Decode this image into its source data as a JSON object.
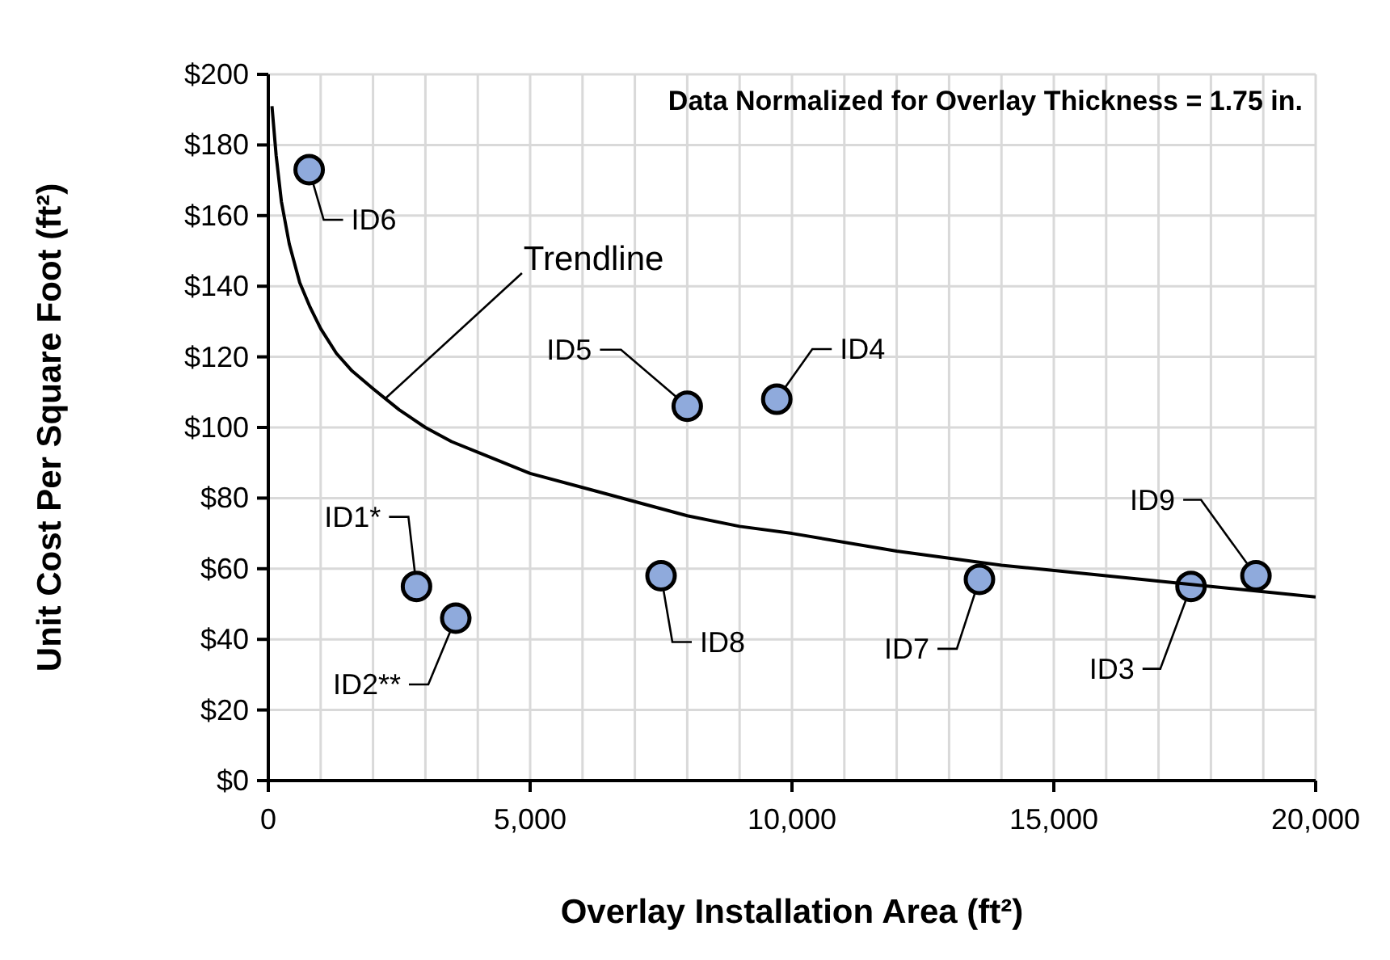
{
  "chart_data": {
    "type": "scatter",
    "title": "Data Normalized for Overlay Thickness = 1.75 in.",
    "xlabel": "Overlay Installation Area (ft²)",
    "ylabel": "Unit Cost Per Square Foot (ft²)",
    "series": [
      {
        "color": "#8faadc",
        "x": [
          780,
          2830,
          3580,
          7500,
          8000,
          9710,
          13580,
          17620,
          18860
        ],
        "values": [
          173,
          55,
          46,
          58,
          106,
          108,
          57,
          55,
          58
        ]
      },
      {
        "type": "line",
        "marker": "none",
        "color": "#000000",
        "x": [
          70,
          150,
          250,
          400,
          600,
          800,
          1000,
          1300,
          1600,
          2000,
          2500,
          3000,
          3500,
          4000,
          5000,
          6000,
          7000,
          8000,
          9000,
          10000,
          12000,
          14000,
          16000,
          18000,
          20000
        ],
        "values": [
          191,
          177,
          164,
          152,
          141,
          134,
          128,
          121,
          116,
          111,
          105,
          100,
          96,
          93,
          87,
          83,
          79,
          75,
          72,
          70,
          65,
          61,
          58,
          55,
          52
        ]
      }
    ],
    "annotations": [
      {
        "text": "ID6",
        "x": 780,
        "y": 173
      },
      {
        "text": "ID1*",
        "x": 2830,
        "y": 55
      },
      {
        "text": "ID2**",
        "x": 3580,
        "y": 46
      },
      {
        "text": "ID8",
        "x": 7500,
        "y": 58
      },
      {
        "text": "ID5",
        "x": 8000,
        "y": 106
      },
      {
        "text": "ID4",
        "x": 9710,
        "y": 108
      },
      {
        "text": "ID7",
        "x": 13580,
        "y": 57
      },
      {
        "text": "ID3",
        "x": 17620,
        "y": 55
      },
      {
        "text": "ID9",
        "x": 18860,
        "y": 58
      },
      {
        "text": "Trendline",
        "x": 2220,
        "y": 108
      }
    ],
    "xlim": [
      0,
      20000
    ],
    "xticks": [
      0,
      {
        "value": 1000,
        "label": null
      },
      {
        "value": 2000,
        "label": null
      },
      {
        "value": 3000,
        "label": null
      },
      {
        "value": 4000,
        "label": null
      },
      {
        "value": 5000,
        "label": "5,000"
      },
      {
        "value": 6000,
        "label": null
      },
      {
        "value": 7000,
        "label": null
      },
      {
        "value": 8000,
        "label": null
      },
      {
        "value": 9000,
        "label": null
      },
      {
        "value": 10000,
        "label": "10,000"
      },
      {
        "value": 11000,
        "label": null
      },
      {
        "value": 12000,
        "label": null
      },
      {
        "value": 13000,
        "label": null
      },
      {
        "value": 14000,
        "label": null
      },
      {
        "value": 15000,
        "label": "15,000"
      },
      {
        "value": 16000,
        "label": null
      },
      {
        "value": 17000,
        "label": null
      },
      {
        "value": 18000,
        "label": null
      },
      {
        "value": 19000,
        "label": null
      },
      {
        "value": 20000,
        "label": "20,000"
      }
    ],
    "ylim": [
      0,
      200
    ],
    "yticks": [
      {
        "value": 0,
        "label": "$0"
      },
      {
        "value": 20,
        "label": "$20"
      },
      {
        "value": 40,
        "label": "$40"
      },
      {
        "value": 60,
        "label": "$60"
      },
      {
        "value": 80,
        "label": "$80"
      },
      {
        "value": 100,
        "label": "$100"
      },
      {
        "value": 120,
        "label": "$120"
      },
      {
        "value": 140,
        "label": "$140"
      },
      {
        "value": 160,
        "label": "$160"
      },
      {
        "value": 180,
        "label": "$180"
      },
      {
        "value": 200,
        "label": "$200"
      }
    ],
    "grid": true,
    "marker": "circle",
    "line_style": "solid"
  }
}
